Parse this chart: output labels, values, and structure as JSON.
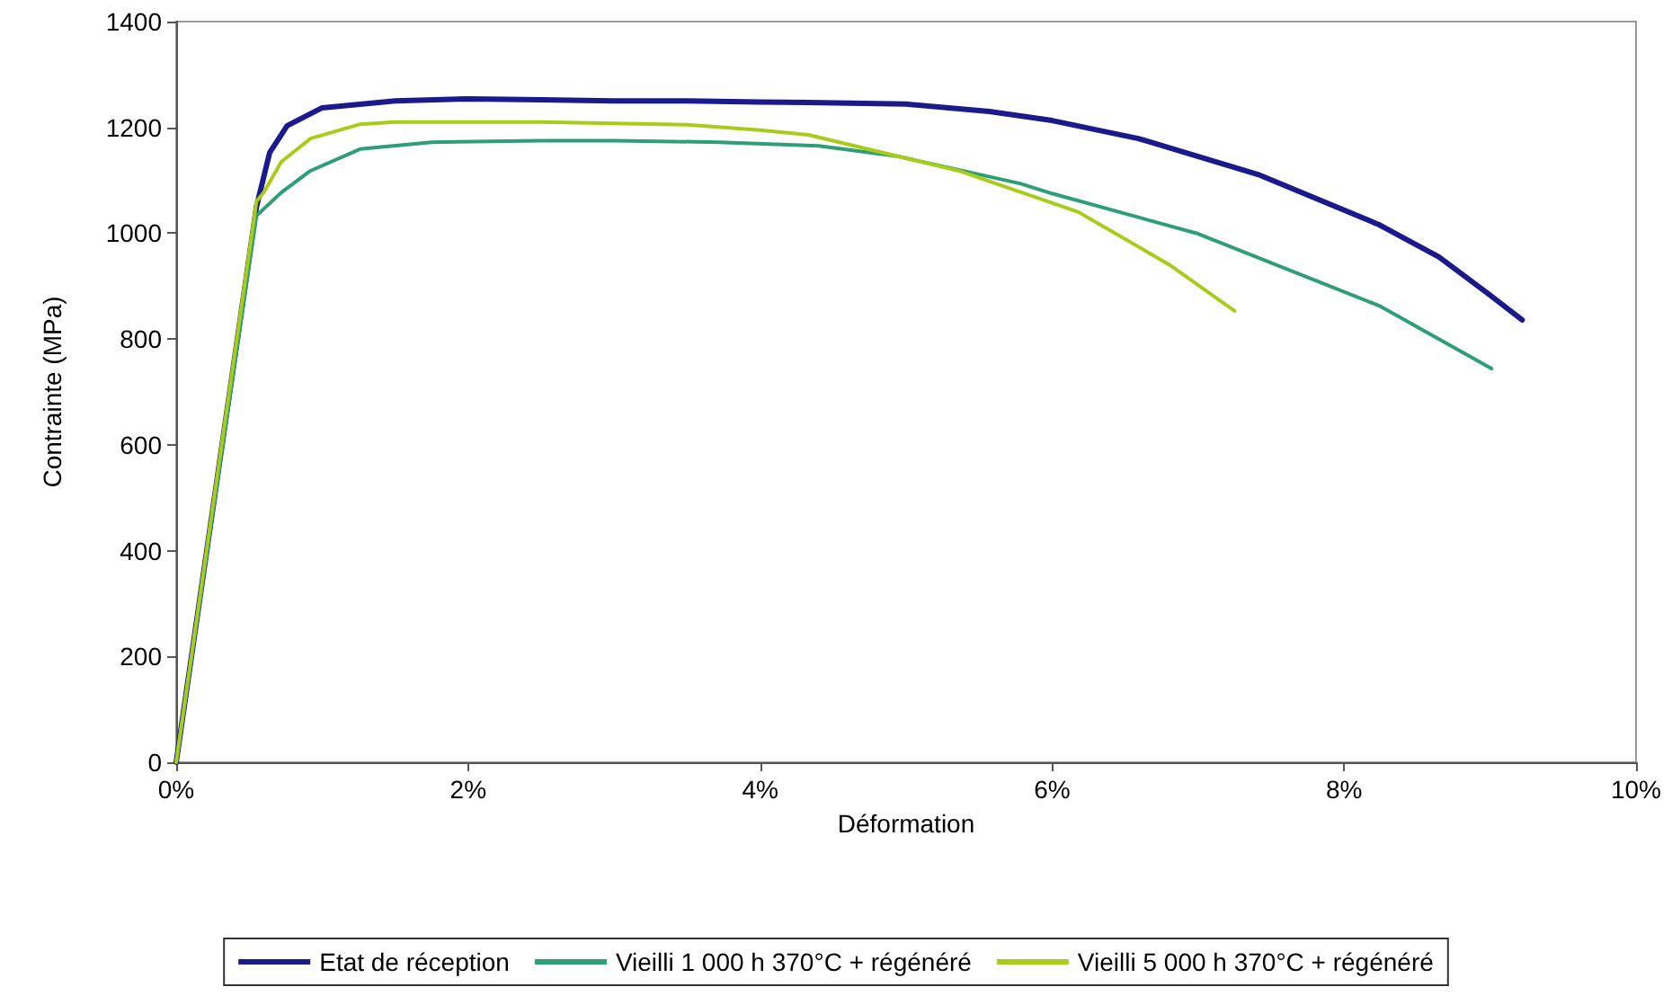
{
  "chart_data": {
    "type": "line",
    "xlabel": "Déformation",
    "ylabel": "Contrainte (MPa)",
    "xlim": [
      0,
      10
    ],
    "xticks": [
      {
        "value": 0,
        "label": "0%"
      },
      {
        "value": 2,
        "label": "2%"
      },
      {
        "value": 4,
        "label": "4%"
      },
      {
        "value": 6,
        "label": "6%"
      },
      {
        "value": 8,
        "label": "8%"
      },
      {
        "value": 10,
        "label": "10%"
      }
    ],
    "ylim": [
      0,
      1400
    ],
    "yticks": [
      0,
      200,
      400,
      600,
      800,
      1000,
      1200,
      1400
    ],
    "grid": false,
    "legend": "bottom",
    "marker": "none",
    "line_style": "solid",
    "series": [
      {
        "name": "Etat de réception",
        "color": "#1a1a8c",
        "x": [
          0,
          0.55,
          0.64,
          0.76,
          1.0,
          1.5,
          2.0,
          2.5,
          3.0,
          3.5,
          4.0,
          4.33,
          5.0,
          5.57,
          6.0,
          6.59,
          7.41,
          8.24,
          8.65,
          8.98,
          9.22
        ],
        "values": [
          0,
          1050,
          1152,
          1203,
          1237,
          1250,
          1254,
          1252,
          1250,
          1250,
          1248,
          1247,
          1244,
          1230,
          1213,
          1179,
          1111,
          1016,
          955,
          887,
          836
        ]
      },
      {
        "name": "Vieilli 1 000 h 370°C + régénéré",
        "color": "#2e9e78",
        "x": [
          0,
          0.55,
          0.72,
          0.92,
          1.26,
          1.75,
          2.5,
          3.0,
          3.72,
          4.4,
          4.95,
          5.78,
          6.0,
          7.0,
          8.24,
          9.01
        ],
        "values": [
          0,
          1033,
          1077,
          1118,
          1159,
          1172,
          1175,
          1175,
          1172,
          1165,
          1145,
          1094,
          1075,
          999,
          863,
          744
        ]
      },
      {
        "name": "Vieilli 5 000 h 370°C + régénéré",
        "color": "#a8cc1a",
        "x": [
          0,
          0.55,
          0.6,
          0.72,
          0.92,
          1.26,
          1.5,
          2.5,
          3.5,
          4.0,
          4.33,
          5.36,
          6.18,
          6.8,
          7.25
        ],
        "values": [
          0,
          1060,
          1077,
          1135,
          1179,
          1206,
          1210,
          1210,
          1205,
          1195,
          1186,
          1118,
          1040,
          941,
          853
        ]
      }
    ]
  }
}
